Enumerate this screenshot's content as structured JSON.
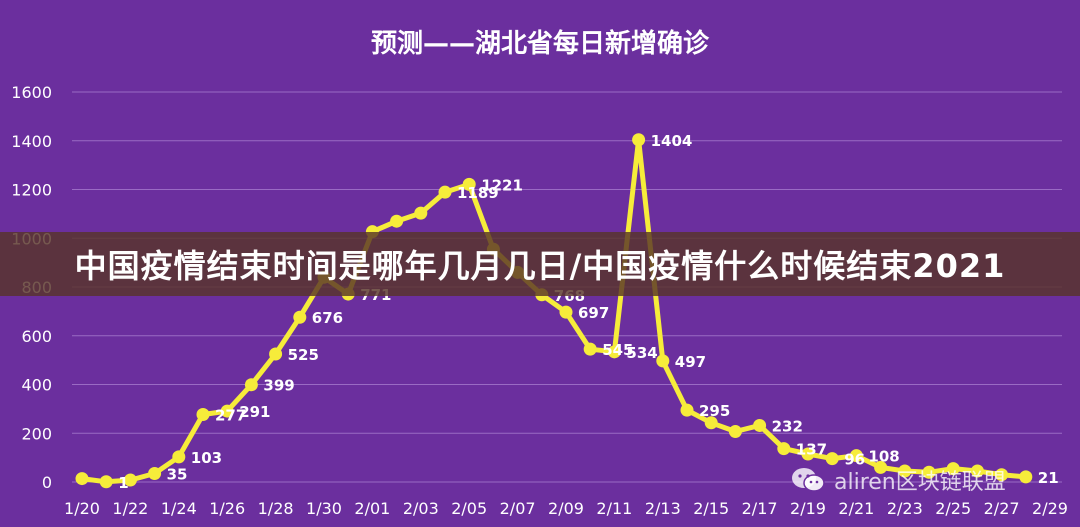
{
  "chart_data": {
    "type": "line",
    "title": "预测——湖北省每日新增确诊",
    "ylim": [
      0,
      1600
    ],
    "y_ticks": [
      0,
      200,
      400,
      600,
      800,
      1000,
      1200,
      1400,
      1600
    ],
    "x_tick_labels": [
      "1/20",
      "1/22",
      "1/24",
      "1/26",
      "1/28",
      "1/30",
      "2/01",
      "2/03",
      "2/05",
      "2/07",
      "2/09",
      "2/11",
      "2/13",
      "2/15",
      "2/17",
      "2/19",
      "2/21",
      "2/23",
      "2/25",
      "2/27",
      "2/29"
    ],
    "grid": true,
    "legend": "none",
    "series": [
      {
        "color": "#f6ec3a",
        "points": [
          {
            "x": "1/20",
            "y": 14,
            "label": ""
          },
          {
            "x": "1/21",
            "y": 1,
            "label": "1"
          },
          {
            "x": "1/22",
            "y": 8,
            "label": ""
          },
          {
            "x": "1/23",
            "y": 35,
            "label": "35"
          },
          {
            "x": "1/24",
            "y": 103,
            "label": "103"
          },
          {
            "x": "1/25",
            "y": 277,
            "label": "277"
          },
          {
            "x": "1/26",
            "y": 291,
            "label": "291"
          },
          {
            "x": "1/27",
            "y": 399,
            "label": "399"
          },
          {
            "x": "1/28",
            "y": 525,
            "label": "525"
          },
          {
            "x": "1/29",
            "y": 676,
            "label": "676"
          },
          {
            "x": "1/30",
            "y": 840,
            "label": ""
          },
          {
            "x": "1/31",
            "y": 771,
            "label": "771"
          },
          {
            "x": "2/01",
            "y": 1027,
            "label": ""
          },
          {
            "x": "2/02",
            "y": 1070,
            "label": ""
          },
          {
            "x": "2/03",
            "y": 1103,
            "label": ""
          },
          {
            "x": "2/04",
            "y": 1189,
            "label": "1189"
          },
          {
            "x": "2/05",
            "y": 1221,
            "label": "1221"
          },
          {
            "x": "2/06",
            "y": 955,
            "label": ""
          },
          {
            "x": "2/07",
            "y": 860,
            "label": ""
          },
          {
            "x": "2/08",
            "y": 768,
            "label": "768"
          },
          {
            "x": "2/09",
            "y": 697,
            "label": "697"
          },
          {
            "x": "2/10",
            "y": 545,
            "label": "545"
          },
          {
            "x": "2/11",
            "y": 534,
            "label": "534"
          },
          {
            "x": "2/12",
            "y": 1404,
            "label": "1404"
          },
          {
            "x": "2/13",
            "y": 497,
            "label": "497"
          },
          {
            "x": "2/14",
            "y": 295,
            "label": "295"
          },
          {
            "x": "2/15",
            "y": 243,
            "label": ""
          },
          {
            "x": "2/16",
            "y": 207,
            "label": ""
          },
          {
            "x": "2/17",
            "y": 232,
            "label": "232"
          },
          {
            "x": "2/18",
            "y": 137,
            "label": "137"
          },
          {
            "x": "2/19",
            "y": 115,
            "label": ""
          },
          {
            "x": "2/20",
            "y": 96,
            "label": "96"
          },
          {
            "x": "2/21",
            "y": 108,
            "label": "108"
          },
          {
            "x": "2/22",
            "y": 60,
            "label": ""
          },
          {
            "x": "2/23",
            "y": 45,
            "label": ""
          },
          {
            "x": "2/24",
            "y": 40,
            "label": ""
          },
          {
            "x": "2/25",
            "y": 55,
            "label": ""
          },
          {
            "x": "2/26",
            "y": 45,
            "label": ""
          },
          {
            "x": "2/27",
            "y": 30,
            "label": ""
          },
          {
            "x": "2/28",
            "y": 21,
            "label": "21"
          }
        ]
      }
    ]
  },
  "banner": {
    "text": "中国疫情结束时间是哪年几月几日/中国疫情什么时候结束2021"
  },
  "watermark": {
    "text": "aliren区块链联盟",
    "icon": "wechat-icon"
  },
  "colors": {
    "background": "#6b2f9e",
    "line": "#f6ec3a",
    "grid": "#9a6bc4",
    "text": "#ffffff"
  }
}
